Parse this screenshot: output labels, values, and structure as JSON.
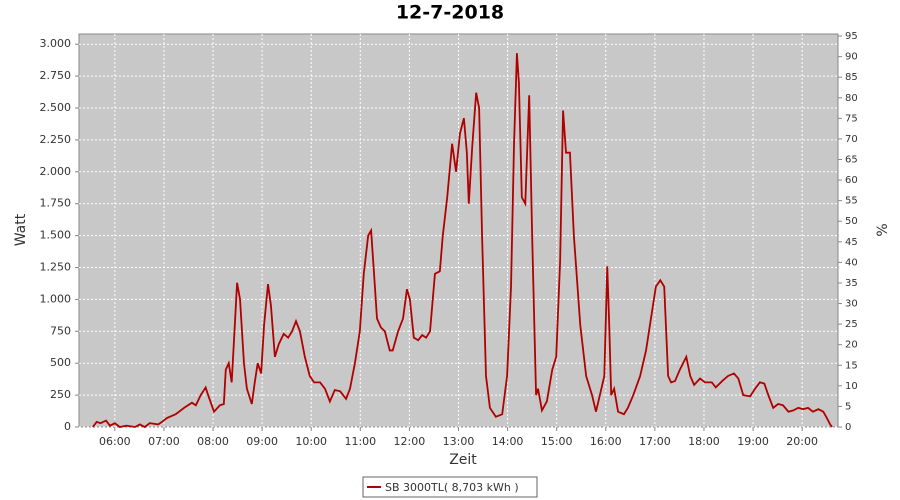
{
  "chart_data": {
    "type": "line",
    "title": "12-7-2018",
    "x_label": "Zeit",
    "y_label": "Watt",
    "y2_label": "%",
    "x": [
      5.55,
      5.63,
      5.71,
      5.82,
      5.9,
      6.0,
      6.1,
      6.24,
      6.41,
      6.51,
      6.61,
      6.71,
      6.88,
      6.96,
      7.06,
      7.24,
      7.41,
      7.57,
      7.65,
      7.75,
      7.85,
      7.9,
      8.02,
      8.14,
      8.22,
      8.26,
      8.32,
      8.38,
      8.43,
      8.49,
      8.55,
      8.63,
      8.69,
      8.79,
      8.85,
      8.91,
      8.98,
      9.04,
      9.12,
      9.18,
      9.26,
      9.34,
      9.44,
      9.53,
      9.61,
      9.69,
      9.77,
      9.87,
      9.97,
      10.06,
      10.18,
      10.28,
      10.38,
      10.48,
      10.59,
      10.71,
      10.79,
      10.89,
      10.99,
      11.07,
      11.16,
      11.22,
      11.28,
      11.34,
      11.42,
      11.5,
      11.6,
      11.66,
      11.77,
      11.87,
      11.95,
      12.01,
      12.09,
      12.18,
      12.26,
      12.34,
      12.42,
      12.52,
      12.62,
      12.68,
      12.77,
      12.87,
      12.95,
      13.03,
      13.11,
      13.17,
      13.21,
      13.28,
      13.36,
      13.42,
      13.48,
      13.56,
      13.64,
      13.76,
      13.89,
      13.99,
      14.07,
      14.13,
      14.19,
      14.23,
      14.29,
      14.36,
      14.44,
      14.5,
      14.58,
      14.62,
      14.7,
      14.8,
      14.91,
      14.99,
      15.07,
      15.13,
      15.19,
      15.27,
      15.35,
      15.48,
      15.6,
      15.72,
      15.8,
      15.88,
      15.97,
      16.03,
      16.07,
      16.11,
      16.17,
      16.25,
      16.37,
      16.45,
      16.56,
      16.7,
      16.82,
      16.94,
      17.02,
      17.11,
      17.19,
      17.27,
      17.33,
      17.41,
      17.51,
      17.64,
      17.72,
      17.8,
      17.92,
      18.02,
      18.16,
      18.24,
      18.37,
      18.49,
      18.61,
      18.7,
      18.8,
      18.94,
      19.04,
      19.14,
      19.23,
      19.31,
      19.41,
      19.51,
      19.61,
      19.72,
      19.82,
      19.92,
      20.02,
      20.12,
      20.22,
      20.33,
      20.43,
      20.49,
      20.57,
      20.61
    ],
    "series": [
      {
        "name": "SB 3000TL( 8,703 kWh )",
        "color": "#b00000",
        "values": [
          0,
          40,
          30,
          50,
          10,
          30,
          0,
          10,
          0,
          20,
          0,
          30,
          20,
          40,
          70,
          100,
          150,
          190,
          170,
          250,
          310,
          250,
          120,
          170,
          180,
          450,
          500,
          350,
          700,
          1130,
          1000,
          500,
          300,
          180,
          350,
          500,
          420,
          800,
          1120,
          950,
          550,
          650,
          730,
          700,
          750,
          830,
          750,
          550,
          400,
          350,
          350,
          300,
          200,
          290,
          280,
          220,
          300,
          500,
          750,
          1200,
          1500,
          1540,
          1200,
          850,
          780,
          750,
          600,
          600,
          750,
          850,
          1080,
          1000,
          700,
          680,
          720,
          700,
          750,
          1200,
          1220,
          1500,
          1800,
          2220,
          2000,
          2300,
          2420,
          2150,
          1750,
          2200,
          2620,
          2500,
          1500,
          400,
          150,
          80,
          100,
          400,
          1100,
          2200,
          2930,
          2700,
          1800,
          1750,
          2600,
          1500,
          250,
          300,
          130,
          200,
          450,
          550,
          1300,
          2480,
          2150,
          2150,
          1500,
          800,
          400,
          250,
          120,
          250,
          400,
          1260,
          800,
          250,
          300,
          120,
          100,
          150,
          250,
          400,
          600,
          900,
          1100,
          1150,
          1100,
          400,
          350,
          360,
          450,
          550,
          400,
          330,
          380,
          350,
          350,
          310,
          360,
          400,
          420,
          380,
          250,
          240,
          300,
          350,
          340,
          250,
          150,
          180,
          170,
          120,
          130,
          150,
          140,
          150,
          120,
          140,
          120,
          80,
          20,
          0
        ]
      }
    ],
    "xlim": [
      5.27,
      20.73
    ],
    "xticks": [
      {
        "value": 6,
        "label": "06:00"
      },
      {
        "value": 7,
        "label": "07:00"
      },
      {
        "value": 8,
        "label": "08:00"
      },
      {
        "value": 9,
        "label": "09:00"
      },
      {
        "value": 10,
        "label": "10:00"
      },
      {
        "value": 11,
        "label": "11:00"
      },
      {
        "value": 12,
        "label": "12:00"
      },
      {
        "value": 13,
        "label": "13:00"
      },
      {
        "value": 14,
        "label": "14:00"
      },
      {
        "value": 15,
        "label": "15:00"
      },
      {
        "value": 16,
        "label": "16:00"
      },
      {
        "value": 17,
        "label": "17:00"
      },
      {
        "value": 18,
        "label": "18:00"
      },
      {
        "value": 19,
        "label": "19:00"
      },
      {
        "value": 20,
        "label": "20:00"
      }
    ],
    "ylim": [
      0,
      3080
    ],
    "yticks": [
      0,
      250,
      500,
      750,
      {
        "value": 1000,
        "label": "1.000"
      },
      {
        "value": 1250,
        "label": "1.250"
      },
      {
        "value": 1500,
        "label": "1.500"
      },
      {
        "value": 1750,
        "label": "1.750"
      },
      {
        "value": 2000,
        "label": "2.000"
      },
      {
        "value": 2250,
        "label": "2.250"
      },
      {
        "value": 2500,
        "label": "2.500"
      },
      {
        "value": 2750,
        "label": "2.750"
      },
      {
        "value": 3000,
        "label": "3.000"
      }
    ],
    "y2lim": [
      0,
      95.5
    ],
    "y2ticks": [
      0,
      5,
      10,
      15,
      20,
      25,
      30,
      35,
      40,
      45,
      50,
      55,
      60,
      65,
      70,
      75,
      80,
      85,
      90,
      95
    ],
    "grid": true
  }
}
